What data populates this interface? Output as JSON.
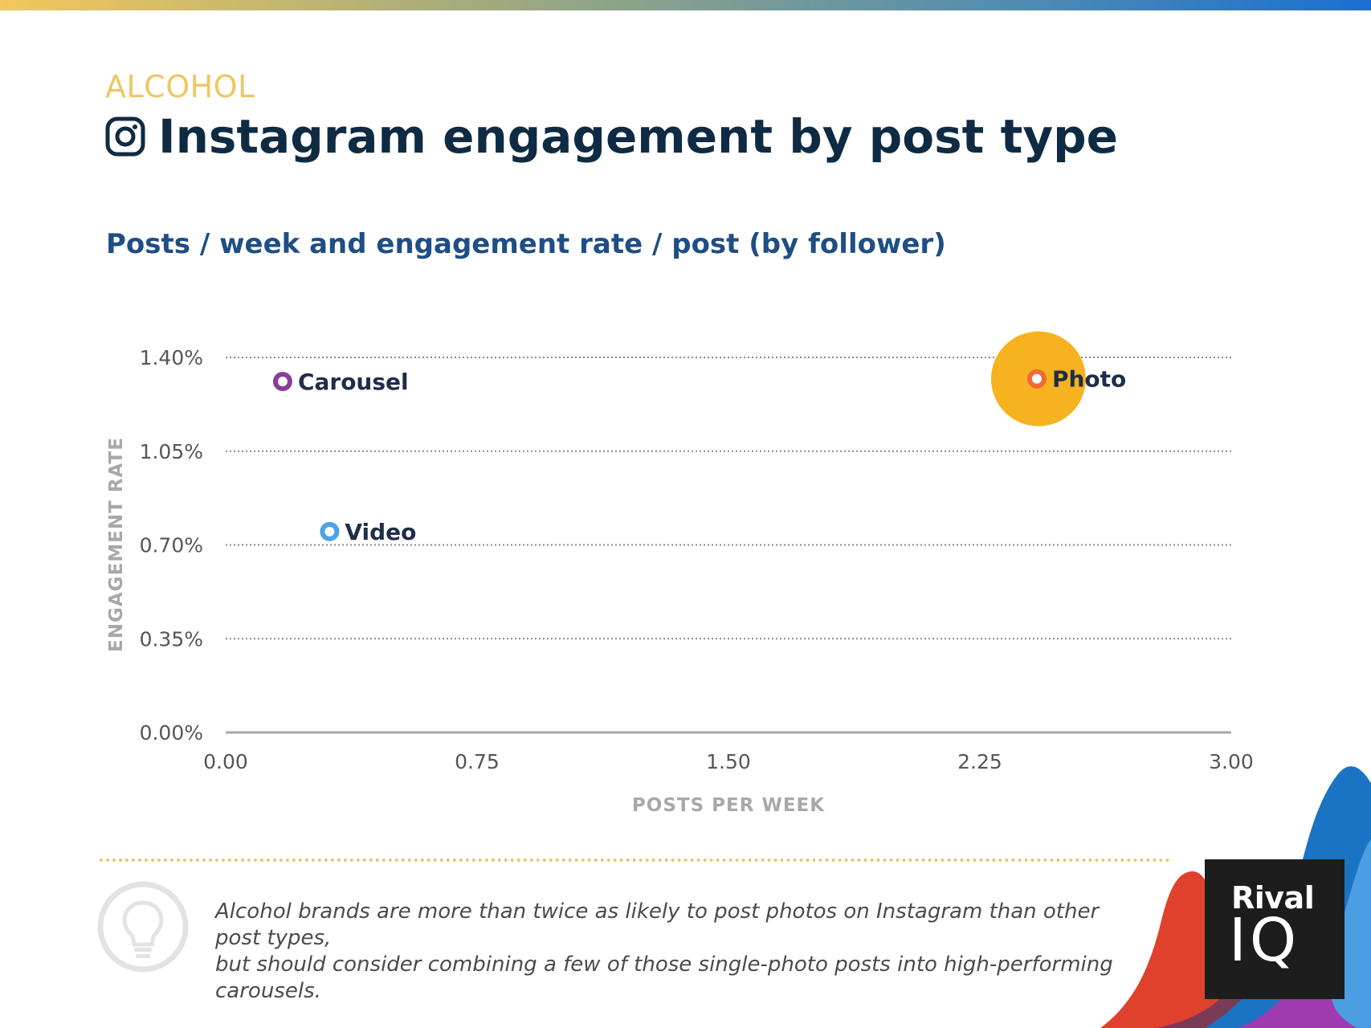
{
  "header": {
    "category": "ALCOHOL",
    "title": "Instagram engagement by post type",
    "subtitle": "Posts / week and engagement rate / post (by follower)"
  },
  "colors": {
    "title": "#0f2b43",
    "subtitle": "#1e4e85",
    "category": "#edc765",
    "bubble": "#f6b31f",
    "carousel": "#8a3d96",
    "photo": "#f06a35",
    "video": "#4aa3e8",
    "label": "#1f2d48",
    "grid": "#888888",
    "axis_title": "#a8a8a8"
  },
  "chart_data": {
    "type": "scatter",
    "title": "Posts / week and engagement rate / post (by follower)",
    "xlabel": "POSTS PER WEEK",
    "ylabel": "ENGAGEMENT RATE",
    "xlim": [
      0,
      3
    ],
    "ylim": [
      0,
      1.4
    ],
    "x_ticks": [
      0,
      0.75,
      1.5,
      2.25,
      3
    ],
    "x_tick_labels": [
      "0.00",
      "0.75",
      "1.50",
      "2.25",
      "3.00"
    ],
    "y_ticks": [
      0,
      0.35,
      0.7,
      1.05,
      1.4
    ],
    "y_tick_labels": [
      "0.00%",
      "0.35%",
      "0.70%",
      "1.05%",
      "1.40%"
    ],
    "grid": true,
    "series": [
      {
        "name": "Carousel",
        "x": 0.17,
        "y": 1.31,
        "color": "#8a3d96"
      },
      {
        "name": "Video",
        "x": 0.31,
        "y": 0.75,
        "color": "#4aa3e8"
      },
      {
        "name": "Photo",
        "x": 2.42,
        "y": 1.32,
        "color": "#f06a35",
        "highlight": true
      }
    ]
  },
  "insight": {
    "line1": "Alcohol brands are more than twice as likely to post photos on Instagram than other post types,",
    "line2": "but should consider combining a few of those single-photo posts into high-performing carousels."
  },
  "logo": {
    "line1": "Rival",
    "line2": "IQ"
  }
}
